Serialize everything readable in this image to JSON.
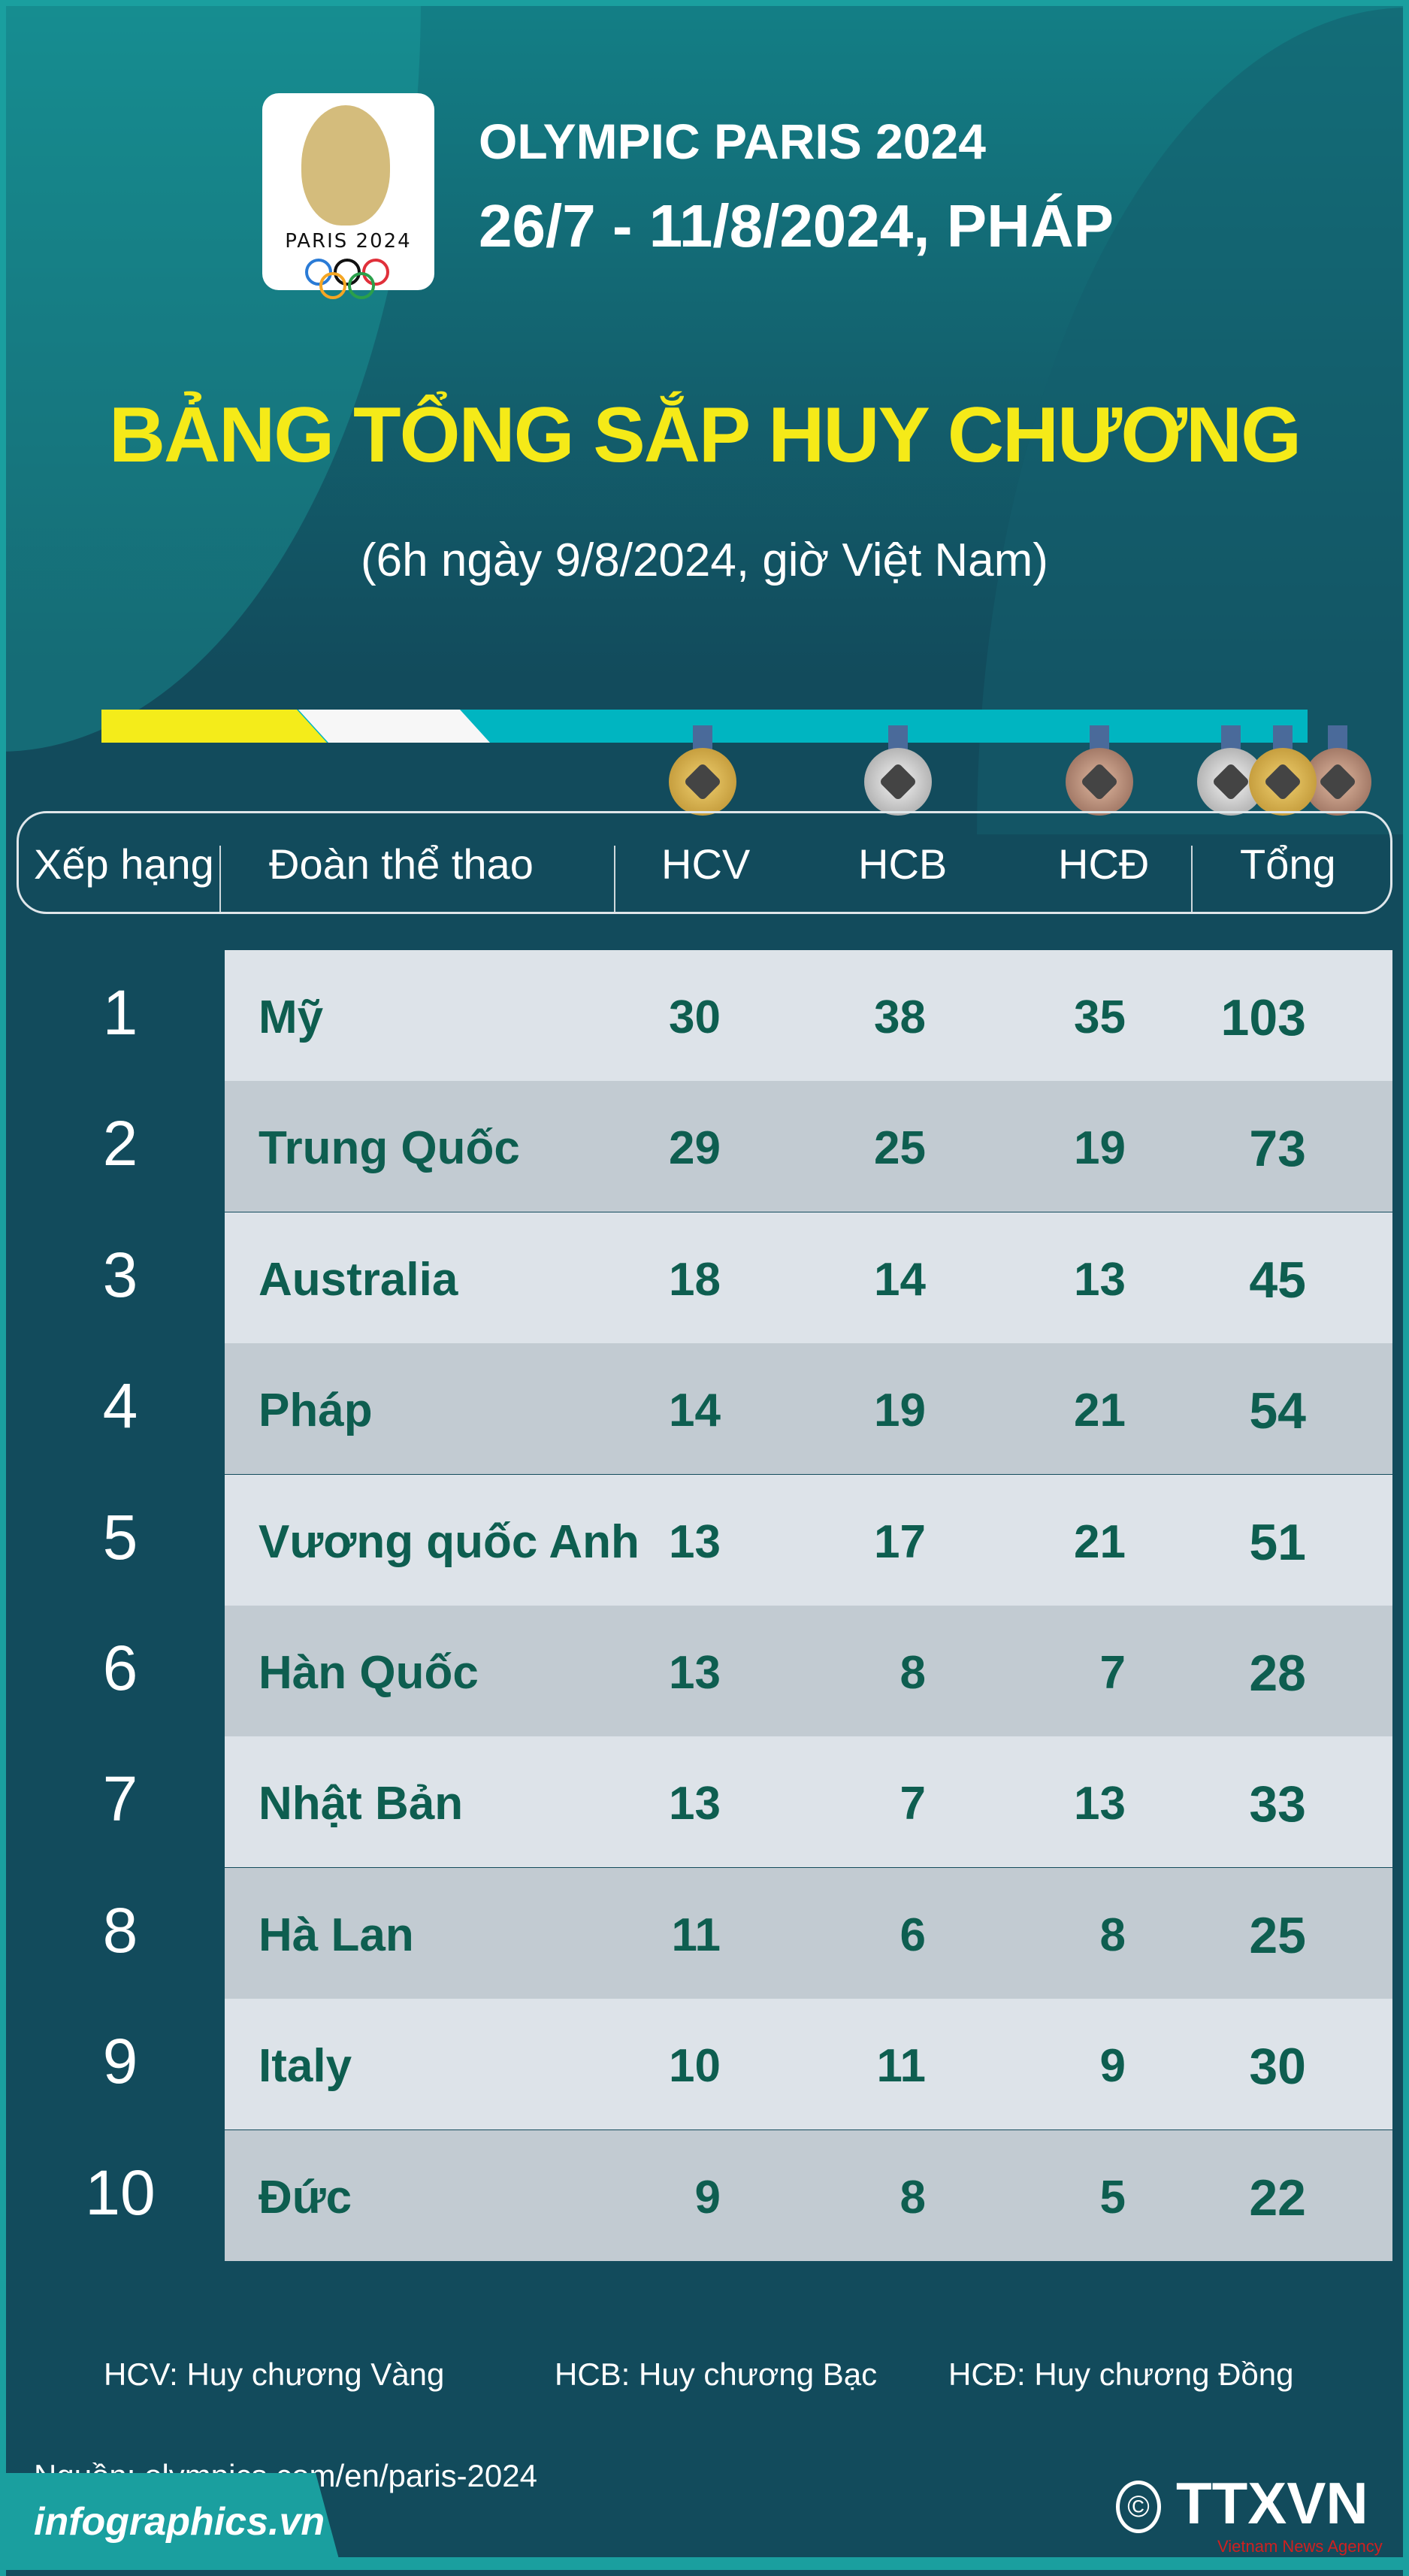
{
  "header": {
    "logo_text": "PARIS 2024",
    "event": "OLYMPIC  PARIS  2024",
    "dates": "26/7 - 11/8/2024, PHÁP",
    "title": "BẢNG TỔNG SẮP HUY CHƯƠNG",
    "subtitle": "(6h ngày 9/8/2024, giờ Việt Nam)"
  },
  "colors": {
    "background": "#124b5c",
    "accent_yellow": "#f5ea18",
    "accent_teal": "#00b5c1",
    "row_light": "#dde3e9",
    "row_dark": "#c2cbd2",
    "value_text": "#0e5e50"
  },
  "table": {
    "columns": [
      "Xếp hạng",
      "Đoàn thể thao",
      "HCV",
      "HCB",
      "HCĐ",
      "Tổng"
    ],
    "rows": [
      {
        "rank": "1",
        "team": "Mỹ",
        "gold": "30",
        "silver": "38",
        "bronze": "35",
        "total": "103"
      },
      {
        "rank": "2",
        "team": "Trung Quốc",
        "gold": "29",
        "silver": "25",
        "bronze": "19",
        "total": "73"
      },
      {
        "rank": "3",
        "team": "Australia",
        "gold": "18",
        "silver": "14",
        "bronze": "13",
        "total": "45"
      },
      {
        "rank": "4",
        "team": "Pháp",
        "gold": "14",
        "silver": "19",
        "bronze": "21",
        "total": "54"
      },
      {
        "rank": "5",
        "team": "Vương quốc Anh",
        "gold": "13",
        "silver": "17",
        "bronze": "21",
        "total": "51"
      },
      {
        "rank": "6",
        "team": "Hàn Quốc",
        "gold": "13",
        "silver": "8",
        "bronze": "7",
        "total": "28"
      },
      {
        "rank": "7",
        "team": "Nhật Bản",
        "gold": "13",
        "silver": "7",
        "bronze": "13",
        "total": "33"
      },
      {
        "rank": "8",
        "team": "Hà Lan",
        "gold": "11",
        "silver": "6",
        "bronze": "8",
        "total": "25"
      },
      {
        "rank": "9",
        "team": "Italy",
        "gold": "10",
        "silver": "11",
        "bronze": "9",
        "total": "30"
      },
      {
        "rank": "10",
        "team": "Đức",
        "gold": "9",
        "silver": "8",
        "bronze": "5",
        "total": "22"
      }
    ]
  },
  "legend": [
    "HCV: Huy chương Vàng",
    "HCB: Huy chương Bạc",
    "HCĐ: Huy chương Đồng"
  ],
  "footer": {
    "source": "Nguồn: olympics.com/en/paris-2024",
    "site": "infographics.vn",
    "brand": "TTXVN",
    "brand_sub": "Vietnam News Agency",
    "copyright": "©"
  }
}
